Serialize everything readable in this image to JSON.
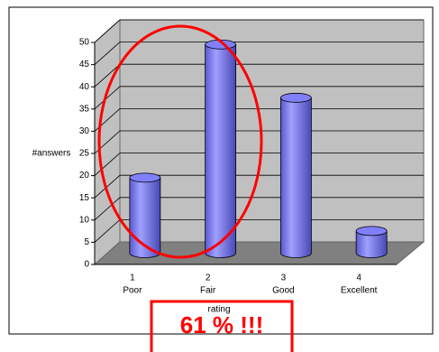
{
  "chart_data": {
    "type": "bar3d",
    "y_label": "#answers",
    "x_label": "rating",
    "categories": [
      "1",
      "2",
      "3",
      "4"
    ],
    "category_names": [
      "Poor",
      "Fair",
      "Good",
      "Excellent"
    ],
    "values": [
      17,
      47,
      35,
      5
    ],
    "color": "#8080ff",
    "ylim": [
      0,
      50
    ],
    "yticks": [
      0,
      5,
      10,
      15,
      20,
      25,
      30,
      35,
      40,
      45,
      50
    ],
    "grid": true,
    "annotation": "61 % !!!"
  }
}
